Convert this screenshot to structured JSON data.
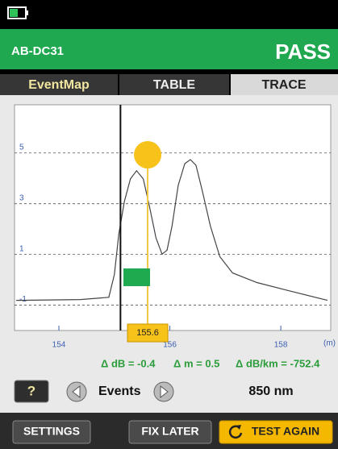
{
  "header": {
    "device": "AB-DC31",
    "result": "PASS"
  },
  "tabs": [
    "EventMap",
    "TABLE",
    "TRACE"
  ],
  "plot": {
    "xlim": [
      153.2,
      158.9
    ],
    "ylim": [
      -2.0,
      6.9
    ],
    "xticks": [
      154,
      156,
      158
    ],
    "yticks": [
      5,
      3,
      1,
      -1
    ],
    "x_unit": "(m)",
    "cursor_a": 155.11,
    "cursor_b": 155.6,
    "cursor_b_label": "155.6",
    "trace": {
      "x": [
        153.23,
        154.39,
        154.9,
        155.0,
        155.08,
        155.18,
        155.29,
        155.4,
        155.52,
        155.63,
        155.75,
        155.86,
        155.95,
        156.04,
        156.15,
        156.27,
        156.37,
        156.47,
        156.58,
        156.73,
        156.9,
        157.13,
        157.57,
        158.14,
        158.84
      ],
      "y": [
        -0.81,
        -0.78,
        -0.69,
        0.21,
        1.81,
        3.09,
        3.98,
        4.3,
        3.98,
        2.92,
        1.65,
        1.01,
        1.17,
        2.13,
        3.72,
        4.58,
        4.74,
        4.52,
        3.56,
        2.12,
        0.91,
        0.27,
        -0.11,
        -0.43,
        -0.81
      ]
    }
  },
  "measurements": [
    "Δ dB = -0.4",
    "Δ m = 0.5",
    "Δ dB/km = -752.4"
  ],
  "controls": {
    "help": "?",
    "events": "Events",
    "wavelength": "850 nm"
  },
  "buttons": [
    "SETTINGS",
    "FIX LATER",
    "TEST AGAIN"
  ]
}
